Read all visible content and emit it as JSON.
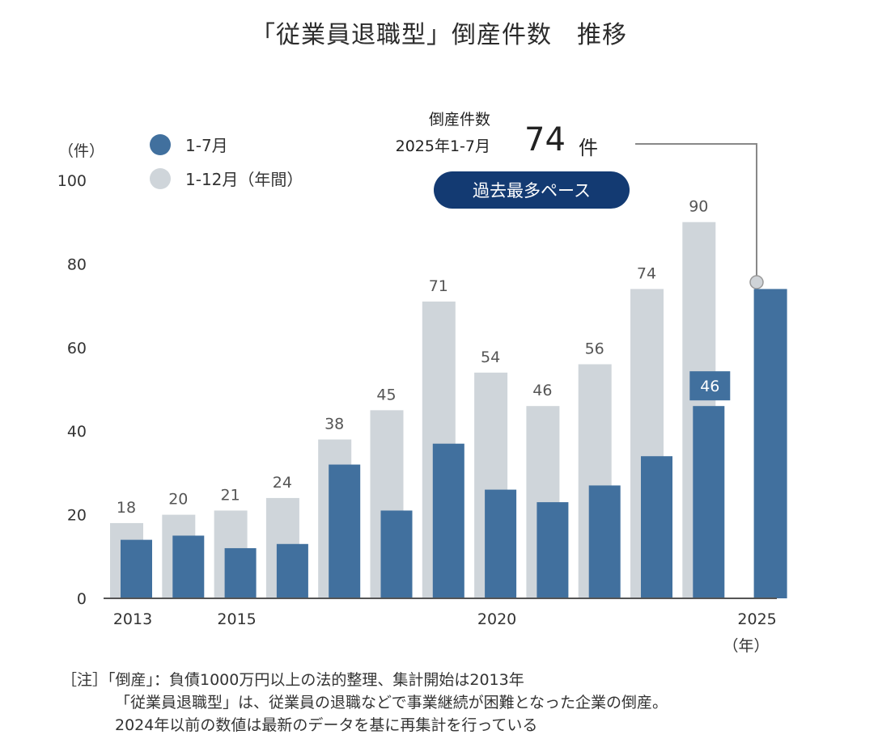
{
  "title": "「従業員退職型」倒産件数　推移",
  "unit_label": "（件）",
  "legend": [
    {
      "label": "1-7月",
      "color": "#41709e"
    },
    {
      "label": "1-12月（年間）",
      "color": "#cfd5da"
    }
  ],
  "callout": {
    "label_line1": "倒産件数",
    "label_line2": "2025年1-7月",
    "value": "74",
    "unit": "件",
    "badge": "過去最多ペース"
  },
  "notes": [
    "［注］「倒産」：負債1000万円以上の法的整理、集計開始は2013年",
    "「従業員退職型」は、従業員の退職などで事業継続が困難となった企業の倒産。",
    "2024年以前の数値は最新のデータを基に再集計を行っている"
  ],
  "chart_data": {
    "type": "bar",
    "title": "「従業員退職型」倒産件数　推移",
    "ylabel": "（件）",
    "xlabel": "（年）",
    "ylim": [
      0,
      100
    ],
    "yticks": [
      "0",
      "20",
      "40",
      "60",
      "80",
      "100"
    ],
    "categories": [
      "2013",
      "2014",
      "2015",
      "2016",
      "2017",
      "2018",
      "2019",
      "2020",
      "2021",
      "2022",
      "2023",
      "2024",
      "2025"
    ],
    "xtick_labels": {
      "2013": "2013",
      "2015": "2015",
      "2020": "2020",
      "2025": "2025"
    },
    "series": [
      {
        "name": "1-12月（年間）",
        "color": "#cfd5da",
        "values": [
          18,
          20,
          21,
          24,
          38,
          45,
          71,
          54,
          46,
          56,
          74,
          90,
          null
        ],
        "labels": [
          "18",
          "20",
          "21",
          "24",
          "38",
          "45",
          "71",
          "54",
          "46",
          "56",
          "74",
          "90",
          ""
        ]
      },
      {
        "name": "1-7月",
        "color": "#41709e",
        "values": [
          14,
          15,
          12,
          13,
          32,
          21,
          37,
          26,
          23,
          27,
          34,
          46,
          74
        ],
        "highlight_label": {
          "category": "2024",
          "text": "46"
        }
      }
    ],
    "grid": false,
    "legend_position": "top-left"
  }
}
